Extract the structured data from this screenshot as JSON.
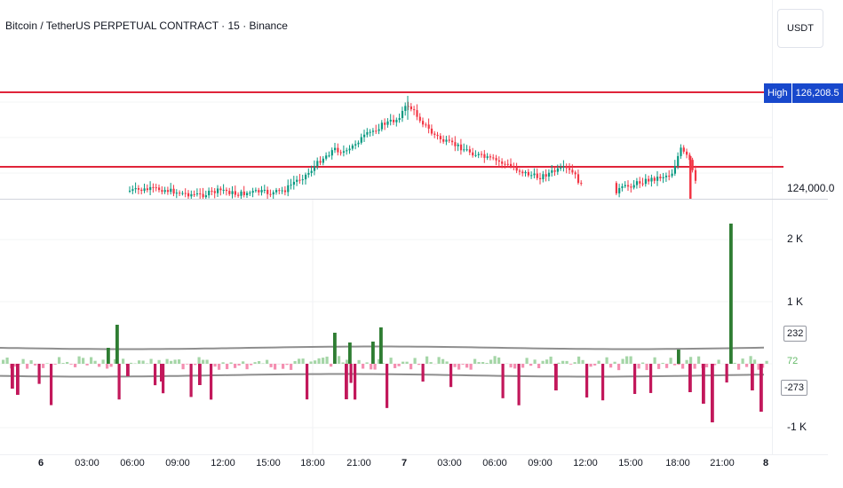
{
  "header": {
    "title": "Bitcoin / TetherUS PERPETUAL CONTRACT · 15 · Binance",
    "currency_button": "USDT"
  },
  "price_axis": {
    "high_label": "High",
    "high_value": "126,208.5",
    "tick_124000": "124,000.0"
  },
  "osc_axis": {
    "tick_2k": "2 K",
    "tick_1k": "1 K",
    "tick_neg1k": "-1 K",
    "upper_band_value": "232",
    "mid_value": "72",
    "lower_band_value": "-273"
  },
  "time_axis": {
    "labels": [
      "6",
      "03:00",
      "06:00",
      "09:00",
      "12:00",
      "15:00",
      "18:00",
      "21:00",
      "7",
      "03:00",
      "06:00",
      "09:00",
      "12:00",
      "15:00",
      "18:00",
      "21:00",
      "8"
    ]
  },
  "colors": {
    "up_candle": "#089981",
    "down_candle": "#f23645",
    "level_line": "#e0243a",
    "hist_strong_up": "#2e7d32",
    "hist_weak_up": "#a5d6a7",
    "hist_strong_down": "#c2185b",
    "hist_weak_down": "#f48fb1",
    "band_line": "#8e8e8e",
    "badge_blue": "#1848cc"
  }
}
